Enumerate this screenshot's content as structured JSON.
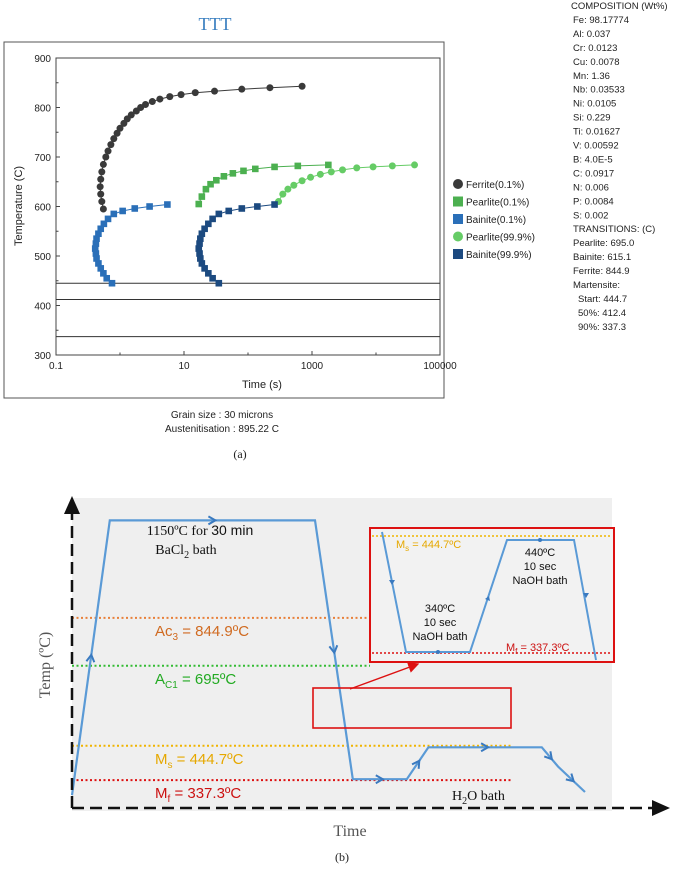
{
  "chart_data": [
    {
      "type": "scatter",
      "title": "TTT",
      "xlabel": "Time (s)",
      "ylabel": "Temperature (C)",
      "xscale": "log",
      "xlim": [
        0.1,
        100000
      ],
      "ylim": [
        300,
        900
      ],
      "x_tick_labels": [
        "0.1",
        "10",
        "1000",
        "100000"
      ],
      "y_tick_labels": [
        "300",
        "400",
        "500",
        "600",
        "700",
        "800",
        "900"
      ],
      "legend_position": "right",
      "series": [
        {
          "name": "Ferrite(0.1%)",
          "color": "#3a3a3a",
          "marker": "circle",
          "points": [
            [
              0.55,
              595
            ],
            [
              0.52,
              610
            ],
            [
              0.5,
              625
            ],
            [
              0.49,
              640
            ],
            [
              0.5,
              655
            ],
            [
              0.52,
              670
            ],
            [
              0.55,
              685
            ],
            [
              0.6,
              700
            ],
            [
              0.65,
              712
            ],
            [
              0.72,
              725
            ],
            [
              0.8,
              737
            ],
            [
              0.9,
              748
            ],
            [
              1.0,
              758
            ],
            [
              1.15,
              768
            ],
            [
              1.3,
              777
            ],
            [
              1.5,
              785
            ],
            [
              1.8,
              793
            ],
            [
              2.1,
              800
            ],
            [
              2.5,
              806
            ],
            [
              3.2,
              812
            ],
            [
              4.2,
              817
            ],
            [
              6,
              822
            ],
            [
              9,
              826
            ],
            [
              15,
              830
            ],
            [
              30,
              833
            ],
            [
              80,
              837
            ],
            [
              220,
              840
            ],
            [
              700,
              843
            ]
          ]
        },
        {
          "name": "Pearlite(0.1%)",
          "color": "#4cb050",
          "marker": "square",
          "points": [
            [
              17,
              605
            ],
            [
              19,
              620
            ],
            [
              22,
              635
            ],
            [
              26,
              645
            ],
            [
              32,
              653
            ],
            [
              42,
              661
            ],
            [
              58,
              667
            ],
            [
              85,
              672
            ],
            [
              130,
              676
            ],
            [
              260,
              680
            ],
            [
              600,
              682
            ],
            [
              1800,
              684
            ]
          ]
        },
        {
          "name": "Bainite(0.1%)",
          "color": "#2a6fb8",
          "marker": "square",
          "points": [
            [
              0.75,
              445
            ],
            [
              0.62,
              455
            ],
            [
              0.55,
              465
            ],
            [
              0.5,
              475
            ],
            [
              0.46,
              485
            ],
            [
              0.43,
              495
            ],
            [
              0.42,
              505
            ],
            [
              0.41,
              515
            ],
            [
              0.42,
              525
            ],
            [
              0.43,
              535
            ],
            [
              0.46,
              545
            ],
            [
              0.5,
              555
            ],
            [
              0.56,
              565
            ],
            [
              0.65,
              575
            ],
            [
              0.8,
              585
            ],
            [
              1.1,
              591
            ],
            [
              1.7,
              596
            ],
            [
              2.9,
              600
            ],
            [
              5.5,
              604
            ]
          ]
        },
        {
          "name": "Pearlite(99.9%)",
          "color": "#66cc66",
          "marker": "circle",
          "points": [
            [
              300,
              610
            ],
            [
              350,
              625
            ],
            [
              420,
              635
            ],
            [
              520,
              643
            ],
            [
              700,
              652
            ],
            [
              950,
              659
            ],
            [
              1350,
              665
            ],
            [
              2000,
              670
            ],
            [
              3000,
              674
            ],
            [
              5000,
              678
            ],
            [
              9000,
              680
            ],
            [
              18000,
              682
            ],
            [
              40000,
              684
            ]
          ]
        },
        {
          "name": "Bainite(99.9%)",
          "color": "#1c4a80",
          "marker": "square",
          "points": [
            [
              35,
              445
            ],
            [
              28,
              455
            ],
            [
              24,
              465
            ],
            [
              21,
              475
            ],
            [
              19,
              485
            ],
            [
              18,
              495
            ],
            [
              17.5,
              505
            ],
            [
              17,
              515
            ],
            [
              17.5,
              525
            ],
            [
              18,
              535
            ],
            [
              19,
              545
            ],
            [
              21,
              555
            ],
            [
              24,
              565
            ],
            [
              28,
              575
            ],
            [
              35,
              585
            ],
            [
              50,
              591
            ],
            [
              80,
              596
            ],
            [
              140,
              600
            ],
            [
              260,
              604
            ]
          ]
        }
      ],
      "horizontal_lines": [
        445,
        412,
        337
      ],
      "footer": [
        "Grain size : 30 microns",
        "Austenitisation : 895.22 C"
      ],
      "composition": {
        "heading": "COMPOSITION (Wt%)",
        "lines": [
          "Fe: 98.17774",
          "Al: 0.037",
          "Cr: 0.0123",
          "Cu: 0.0078",
          "Mn: 1.36",
          "Nb: 0.03533",
          "Ni: 0.0105",
          "Si: 0.229",
          "Ti: 0.01627",
          "V: 0.00592",
          "B: 4.0E-5",
          "C: 0.0917",
          "N: 0.006",
          "P: 0.0084",
          "S: 0.002"
        ]
      },
      "transitions": {
        "heading": "TRANSITIONS: (C)",
        "lines": [
          "Pearlite: 695.0",
          "Bainite: 615.1",
          "Ferrite: 844.9",
          "Martensite:",
          "Start: 444.7",
          "50%:  412.4",
          "90%:  337.3"
        ]
      }
    },
    {
      "type": "line",
      "xlabel": "Time",
      "ylabel": "Temp (ºC)",
      "ylim": [
        250,
        1220
      ],
      "xlim": [
        0,
        100
      ],
      "profile": [
        [
          0,
          290
        ],
        [
          7,
          1150
        ],
        [
          45,
          1150
        ],
        [
          52,
          340
        ],
        [
          62,
          340
        ],
        [
          66,
          440
        ],
        [
          87,
          440
        ],
        [
          90,
          380
        ],
        [
          95,
          300
        ]
      ],
      "levels": [
        {
          "label": "Ac",
          "sub": "3",
          "rest": " = 844.9ºC",
          "value": 844.9,
          "color": "#e8803a",
          "text_color": "#d06a20"
        },
        {
          "label": "A",
          "sub": "C1",
          "rest": " = 695ºC",
          "value": 695,
          "color": "#33bb33",
          "text_color": "#22aa22"
        },
        {
          "label": "M",
          "sub": "s",
          "rest": " = 444.7ºC",
          "value": 444.7,
          "color": "#f0b400",
          "text_color": "#e6a800"
        },
        {
          "label": "M",
          "sub": "f",
          "rest": " = 337.3ºC",
          "value": 337.3,
          "color": "#dd1111",
          "text_color": "#cc1111"
        }
      ],
      "annotations": {
        "austenitize_temp": "1150ºC for ",
        "austenitize_time": "30 min",
        "austenitize_bath": "BaCl",
        "austenitize_bath_sub": "2",
        "austenitize_bath_rest": " bath",
        "quench": "H",
        "quench_sub": "2",
        "quench_rest": "O bath"
      },
      "inset": {
        "ms_label": "M",
        "ms_sub": "s",
        "ms_rest": " = 444.7ºC",
        "mf_label": "M",
        "mf_sub": "f",
        "mf_rest": " = 337.3ºC",
        "step1": [
          "340ºC",
          "10 sec",
          "NaOH bath"
        ],
        "step2": [
          "440ºC",
          "10 sec",
          "NaOH bath"
        ]
      }
    }
  ],
  "captions": [
    "(a)",
    "(b)"
  ]
}
